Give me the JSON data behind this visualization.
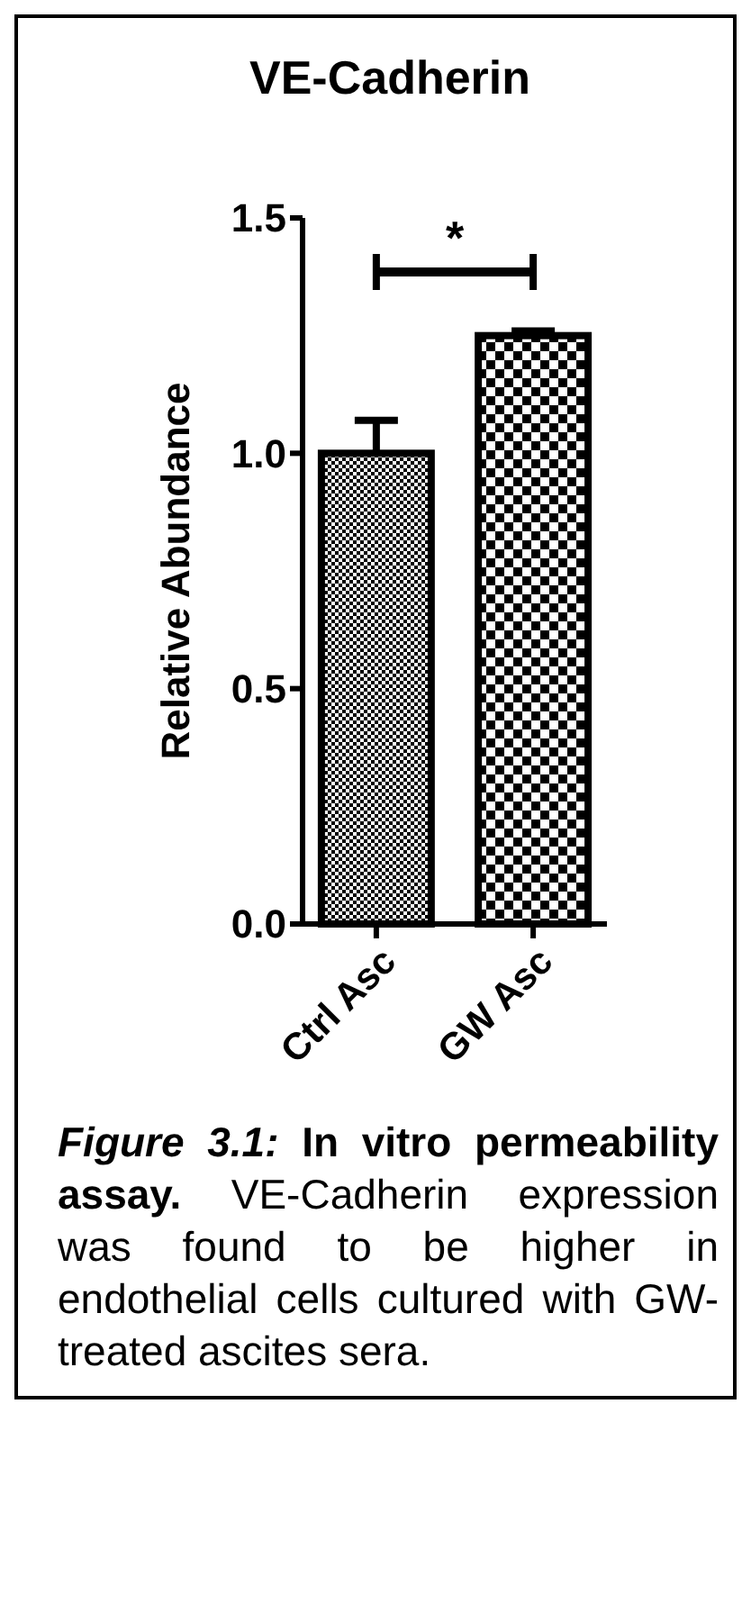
{
  "chart_data": {
    "type": "bar",
    "title": "VE-Cadherin",
    "ylabel": "Relative Abundance",
    "categories": [
      "Ctrl Asc",
      "GW Asc"
    ],
    "values": [
      1.0,
      1.25
    ],
    "errors": [
      0.07,
      0.01
    ],
    "colors": [
      "#000000",
      "#000000"
    ],
    "ylim": [
      0,
      1.5
    ],
    "yticks": [
      {
        "value": 0,
        "label": "0.0"
      },
      {
        "value": 0.5,
        "label": "0.5"
      },
      {
        "value": 1,
        "label": "1.0"
      },
      {
        "value": 1.5,
        "label": "1.5"
      }
    ],
    "grid": false,
    "annotations": [
      "*",
      "Figure 3.1: In vitro permeability assay. VE-Cadherin expression was found to be higher in endothelial cells cultured with GW-treated ascites sera."
    ]
  }
}
